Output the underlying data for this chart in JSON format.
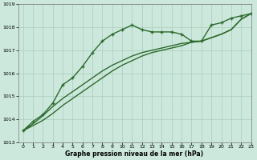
{
  "main_line": {
    "x": [
      0,
      1,
      2,
      3,
      4,
      5,
      6,
      7,
      8,
      9,
      10,
      11,
      12,
      13,
      14,
      15,
      16,
      17,
      18,
      19,
      20,
      21,
      22,
      23
    ],
    "y": [
      1013.5,
      1013.9,
      1014.2,
      1014.7,
      1015.5,
      1015.8,
      1016.3,
      1016.9,
      1017.4,
      1017.7,
      1017.9,
      1018.1,
      1017.9,
      1017.8,
      1017.8,
      1017.8,
      1017.7,
      1017.4,
      1017.4,
      1018.1,
      1018.2,
      1018.4,
      1018.5,
      1018.6
    ]
  },
  "line2": {
    "x": [
      0,
      1,
      2,
      3,
      4,
      5,
      6,
      7,
      8,
      9,
      10,
      11,
      12,
      13,
      14,
      15,
      16,
      17,
      18,
      19,
      20,
      21,
      22,
      23
    ],
    "y": [
      1013.5,
      1013.8,
      1014.15,
      1014.55,
      1014.9,
      1015.2,
      1015.5,
      1015.8,
      1016.1,
      1016.35,
      1016.55,
      1016.75,
      1016.9,
      1017.0,
      1017.1,
      1017.2,
      1017.3,
      1017.35,
      1017.4,
      1017.55,
      1017.7,
      1017.9,
      1018.35,
      1018.6
    ]
  },
  "line3": {
    "x": [
      0,
      1,
      2,
      3,
      4,
      5,
      6,
      7,
      8,
      9,
      10,
      11,
      12,
      13,
      14,
      15,
      16,
      17,
      18,
      19,
      20,
      21,
      22,
      23
    ],
    "y": [
      1013.5,
      1013.72,
      1013.95,
      1014.25,
      1014.6,
      1014.9,
      1015.2,
      1015.5,
      1015.8,
      1016.1,
      1016.35,
      1016.55,
      1016.75,
      1016.9,
      1017.0,
      1017.1,
      1017.2,
      1017.35,
      1017.4,
      1017.55,
      1017.7,
      1017.9,
      1018.35,
      1018.6
    ]
  },
  "line_color": "#2d6a2d",
  "bg_color": "#cce8dc",
  "grid_color": "#aaccbb",
  "xlabel": "Graphe pression niveau de la mer (hPa)",
  "ylim": [
    1013.0,
    1019.0
  ],
  "xlim": [
    -0.5,
    23
  ],
  "yticks": [
    1013,
    1014,
    1015,
    1016,
    1017,
    1018,
    1019
  ],
  "xticks": [
    0,
    1,
    2,
    3,
    4,
    5,
    6,
    7,
    8,
    9,
    10,
    11,
    12,
    13,
    14,
    15,
    16,
    17,
    18,
    19,
    20,
    21,
    22,
    23
  ]
}
